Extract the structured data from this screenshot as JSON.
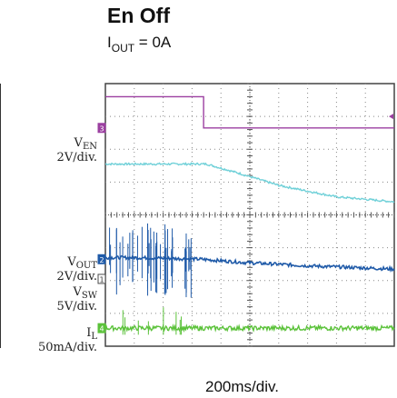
{
  "chart_data": {
    "type": "line",
    "title": "En Off",
    "subtitle": {
      "prefix": "I",
      "sub": "OUT",
      "suffix": " = 0A"
    },
    "xlabel": "200ms/div.",
    "divisions": {
      "x": 10,
      "y": 8
    },
    "channels": [
      {
        "id": "3",
        "name": "V",
        "sub": "EN",
        "scale": "2V/div.",
        "marker": "3"
      },
      {
        "id": "2",
        "name": "V",
        "sub": "OUT",
        "scale": "2V/div.",
        "marker": "2"
      },
      {
        "id": "1",
        "name": "V",
        "sub": "SW",
        "scale": "5V/div.",
        "marker": "1"
      },
      {
        "id": "4",
        "name": "I",
        "sub": "L",
        "scale": "50mA/div.",
        "marker": "4"
      }
    ],
    "series": [
      {
        "name": "V_EN",
        "color": "#9b3fa0",
        "x": [
          0,
          3.4,
          3.4,
          10
        ],
        "y": [
          7.6,
          7.6,
          6.65,
          6.65
        ]
      },
      {
        "name": "V_OUT",
        "color": "#6fd0d8",
        "x": [
          0,
          3.5,
          4.5,
          6,
          8,
          10
        ],
        "y": [
          5.55,
          5.55,
          5.3,
          4.9,
          4.55,
          4.4
        ]
      },
      {
        "name": "V_SW",
        "color": "#1f5aa8",
        "x": [
          0,
          1,
          3.3,
          4.8,
          7,
          10
        ],
        "y": [
          2.7,
          2.7,
          2.65,
          2.55,
          2.45,
          2.35
        ]
      },
      {
        "name": "I_L",
        "color": "#5bc23a",
        "x": [
          0,
          10
        ],
        "y": [
          0.55,
          0.55
        ]
      }
    ],
    "colors": {
      "grid": "#888888",
      "frame": "#444444"
    }
  }
}
